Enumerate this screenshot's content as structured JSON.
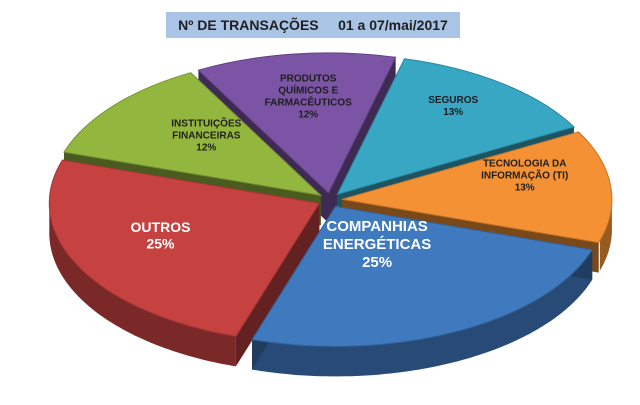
{
  "chart_data": {
    "type": "pie",
    "title": "Nº DE TRANSAÇÕES     01 a 07/mai/2017",
    "label_style": "category-and-percent-on-slice",
    "legend": "none",
    "three_d": true,
    "exploded": true,
    "slices": [
      {
        "name": "COMPANHIAS ENERGÉTICAS",
        "lines": [
          "COMPANHIAS",
          "ENERGÉTICAS"
        ],
        "pct_label": "25%",
        "value": 25,
        "color": "#3f79be"
      },
      {
        "name": "OUTROS",
        "lines": [
          "OUTROS"
        ],
        "pct_label": "25%",
        "value": 25,
        "color": "#c64241"
      },
      {
        "name": "INSTITUIÇÕES FINANCEIRAS",
        "lines": [
          "INSTITUIÇÕES",
          "FINANCEIRAS"
        ],
        "pct_label": "12%",
        "value": 12,
        "color": "#93b63f"
      },
      {
        "name": "PRODUTOS QUÍMICOS E FARMACÊUTICOS",
        "lines": [
          "PRODUTOS",
          "QUÍMICOS E",
          "FARMACÊUTICOS"
        ],
        "pct_label": "12%",
        "value": 12,
        "color": "#7b54a5"
      },
      {
        "name": "SEGUROS",
        "lines": [
          "SEGUROS"
        ],
        "pct_label": "13%",
        "value": 13,
        "color": "#37a7c4"
      },
      {
        "name": "TECNOLOGIA DA INFORMAÇÃO (TI)",
        "lines": [
          "TECNOLOGIA DA",
          "INFORMAÇÃO (TI)"
        ],
        "pct_label": "13%",
        "value": 13,
        "color": "#f39134"
      }
    ]
  }
}
